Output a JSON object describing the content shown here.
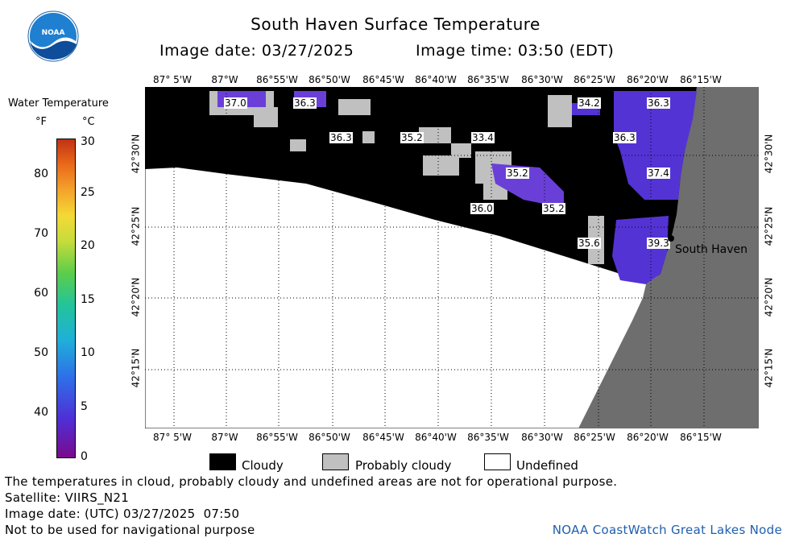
{
  "header": {
    "title": "South Haven Surface Temperature",
    "image_date": "Image date: 03/27/2025",
    "image_time": "Image time: 03:50 (EDT)"
  },
  "logo": {
    "icon": "noaa-logo",
    "text": "NOAA"
  },
  "colorbar": {
    "title": "Water Temperature",
    "unit_f": "°F",
    "unit_c": "°C",
    "f_ticks": [
      "80",
      "70",
      "60",
      "50",
      "40"
    ],
    "c_ticks": [
      "30",
      "25",
      "20",
      "15",
      "10",
      "5",
      "0"
    ]
  },
  "map": {
    "lon_ticks": [
      "87° 5'W",
      "87°W",
      "86°55'W",
      "86°50'W",
      "86°45'W",
      "86°40'W",
      "86°35'W",
      "86°30'W",
      "86°25'W",
      "86°20'W",
      "86°15'W"
    ],
    "lat_ticks": [
      "42°30'N",
      "42°25'N",
      "42°20'N",
      "42°15'N"
    ],
    "place_label": "South Haven",
    "temperature_labels": [
      "37.0",
      "36.3",
      "34.2",
      "36.3",
      "36.3",
      "35.2",
      "33.4",
      "36.3",
      "35.2",
      "37.4",
      "36.0",
      "35.2",
      "35.6",
      "39.3"
    ],
    "colors": {
      "cloud": "#000000",
      "probably_cloudy": "#c0c0c0",
      "land": "#6e6e6e",
      "undefined": "#ffffff",
      "water_cold": "#5433d4",
      "water_mid": "#6a3fd8"
    }
  },
  "legend": {
    "cloud": "Cloudy",
    "probably_cloudy": "Probably cloudy",
    "undefined": "Undefined"
  },
  "footer": {
    "disclaimer": "The temperatures in cloud, probably cloudy and undefined areas are not for operational purpose.",
    "satellite": "Satellite: VIIRS_N21",
    "utc_date": "Image date: (UTC) 03/27/2025  07:50",
    "nav_warning": "Not to be used for navigational purpose",
    "credit": "NOAA CoastWatch Great Lakes Node"
  }
}
